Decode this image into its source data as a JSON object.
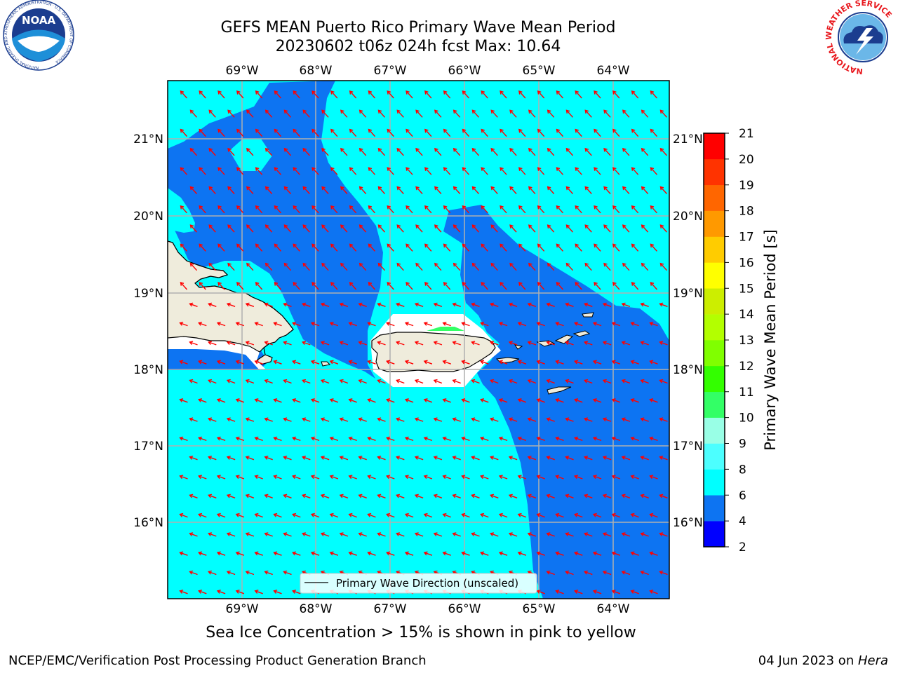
{
  "header": {
    "title_line1": "GEFS MEAN Puerto Rico Primary Wave Mean Period",
    "title_line2": "20230602 t06z 024h fcst   Max: 10.64"
  },
  "logos": {
    "left": {
      "name": "NOAA",
      "text": "NOAA",
      "ring_text": "NATIONAL OCEANIC AND ATMOSPHERIC ADMINISTRATION · U.S. DEPARTMENT OF COMMERCE"
    },
    "right": {
      "name": "National Weather Service",
      "ring_text": "NATIONAL WEATHER SERVICE"
    }
  },
  "map": {
    "lon_labels": [
      "69°W",
      "68°W",
      "67°W",
      "66°W",
      "65°W",
      "64°W"
    ],
    "lat_labels": [
      "21°N",
      "20°N",
      "19°N",
      "18°N",
      "17°N",
      "16°N"
    ],
    "legend_label": "Primary Wave Direction (unscaled)",
    "arrow_color": "#ff0000",
    "colors": {
      "light": "#00ffff",
      "dark": "#0d74f2",
      "land": "#efecdc"
    }
  },
  "colorbar": {
    "label": "Primary Wave Mean Period [s]",
    "ticks": [
      "2",
      "4",
      "6",
      "8",
      "9",
      "10",
      "11",
      "12",
      "13",
      "14",
      "15",
      "16",
      "17",
      "18",
      "19",
      "20",
      "21"
    ],
    "colors": [
      "#0000ff",
      "#0d74f2",
      "#00ffff",
      "#4cffff",
      "#99ffe6",
      "#33ff66",
      "#33ff00",
      "#80ff00",
      "#b3ff00",
      "#ccee00",
      "#ffff00",
      "#ffcc00",
      "#ff9900",
      "#ff6600",
      "#ff3300",
      "#ff0000"
    ]
  },
  "footer": {
    "sea_ice_note": "Sea Ice Concentration > 15% is shown in pink to yellow",
    "left": "NCEP/EMC/Verification Post Processing Product Generation Branch",
    "right_date": "04 Jun 2023 on ",
    "right_host": "Hera"
  }
}
